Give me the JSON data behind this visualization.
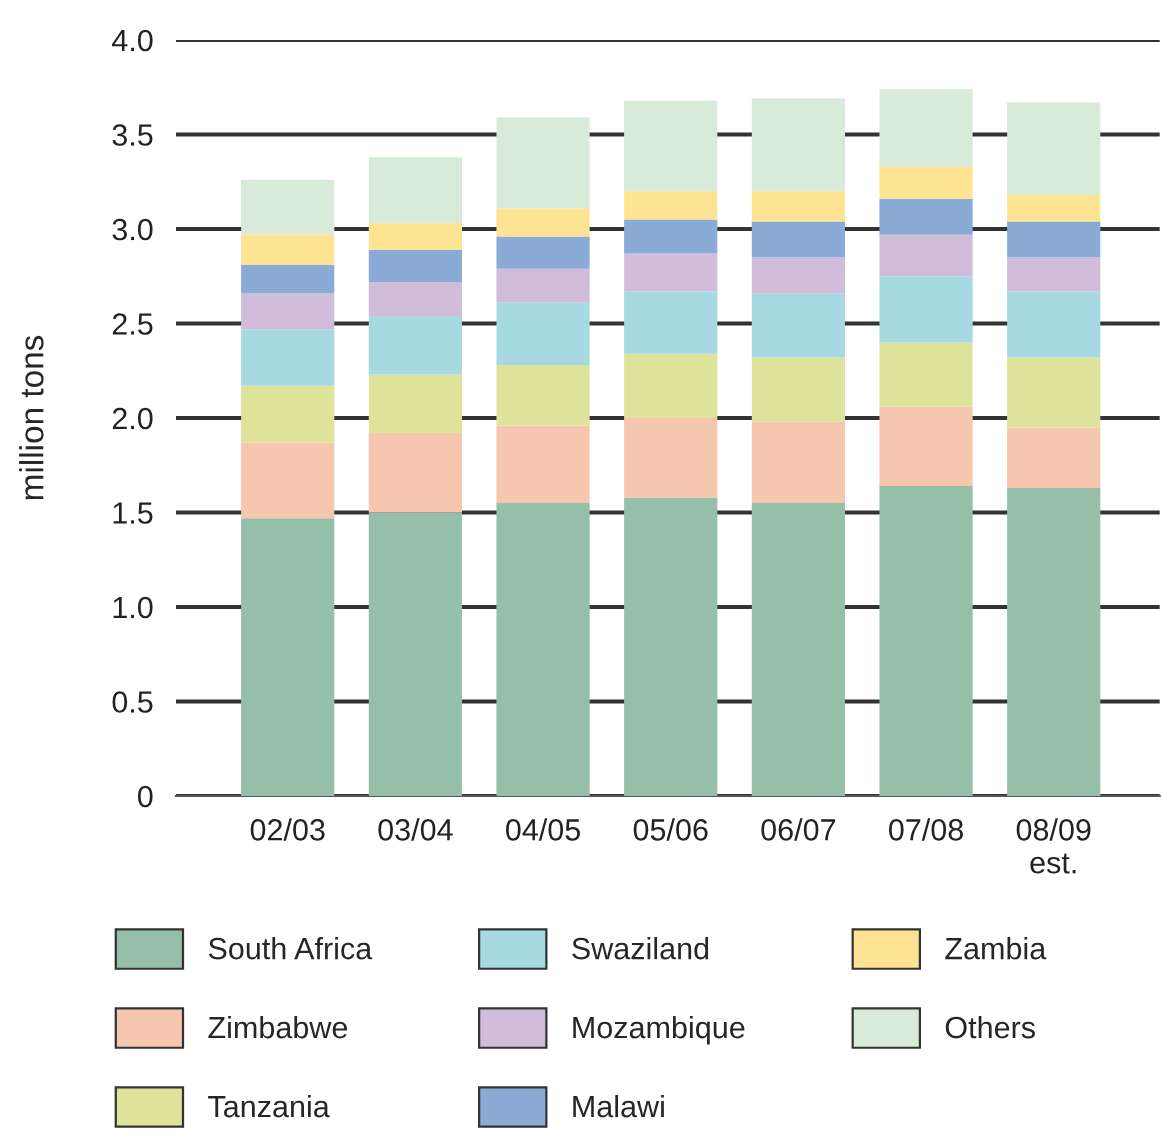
{
  "chart_data": {
    "type": "bar",
    "stacked": true,
    "ylabel": "million tons",
    "categories": [
      "02/03",
      "03/04",
      "04/05",
      "05/06",
      "06/07",
      "07/08",
      "08/09\nest."
    ],
    "ylim": [
      0,
      4.0
    ],
    "yticks": [
      {
        "value": 0,
        "label": "0"
      },
      {
        "value": 0.5,
        "label": "0.5"
      },
      {
        "value": 1.0,
        "label": "1.0"
      },
      {
        "value": 1.5,
        "label": "1.5"
      },
      {
        "value": 2.0,
        "label": "2.0"
      },
      {
        "value": 2.5,
        "label": "2.5"
      },
      {
        "value": 3.0,
        "label": "3.0"
      },
      {
        "value": 3.5,
        "label": "3.5"
      },
      {
        "value": 4.0,
        "label": "4.0"
      }
    ],
    "grid": "y",
    "legend": "bottom",
    "series": [
      {
        "name": "South Africa",
        "color": "#96bfaa",
        "values": [
          1.47,
          1.5,
          1.55,
          1.58,
          1.55,
          1.64,
          1.63
        ]
      },
      {
        "name": "Zimbabwe",
        "color": "#f7c6ae",
        "values": [
          0.4,
          0.42,
          0.41,
          0.42,
          0.43,
          0.42,
          0.32
        ]
      },
      {
        "name": "Tanzania",
        "color": "#dde39a",
        "values": [
          0.3,
          0.31,
          0.32,
          0.34,
          0.34,
          0.34,
          0.37
        ]
      },
      {
        "name": "Swaziland",
        "color": "#a6d9e2",
        "values": [
          0.3,
          0.31,
          0.33,
          0.33,
          0.34,
          0.35,
          0.35
        ]
      },
      {
        "name": "Mozambique",
        "color": "#d1bcd9",
        "values": [
          0.19,
          0.18,
          0.18,
          0.2,
          0.19,
          0.22,
          0.18
        ]
      },
      {
        "name": "Malawi",
        "color": "#8aabd6",
        "values": [
          0.15,
          0.17,
          0.17,
          0.18,
          0.19,
          0.19,
          0.19
        ]
      },
      {
        "name": "Zambia",
        "color": "#fee393",
        "values": [
          0.16,
          0.14,
          0.15,
          0.15,
          0.16,
          0.17,
          0.14
        ]
      },
      {
        "name": "Others",
        "color": "#d8ead8",
        "values": [
          0.29,
          0.35,
          0.48,
          0.48,
          0.49,
          0.41,
          0.49
        ]
      }
    ]
  }
}
